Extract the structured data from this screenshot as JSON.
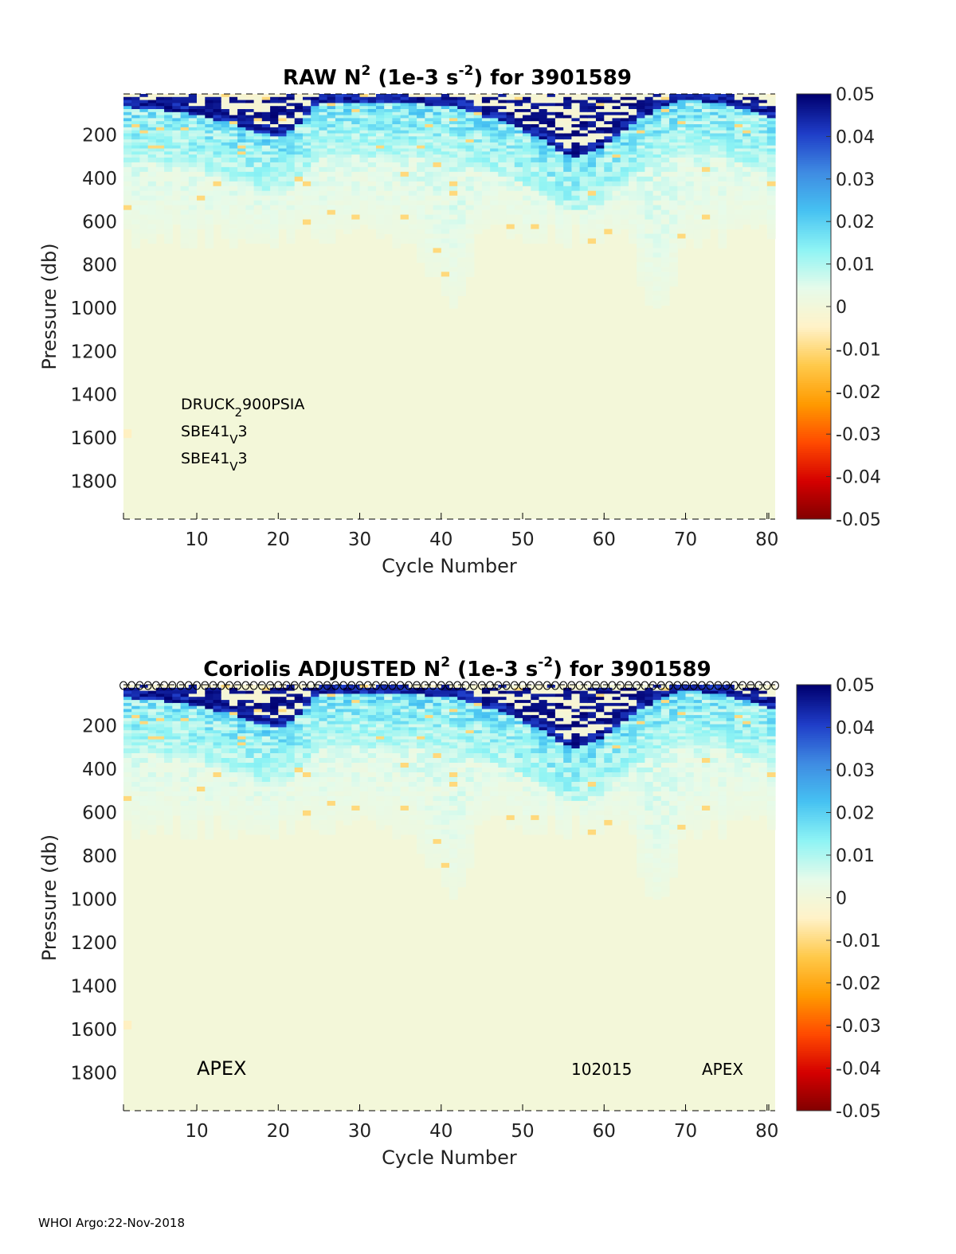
{
  "footer": "WHOI Argo:22-Nov-2018",
  "colormap": {
    "stops": [
      "#800000",
      "#d40000",
      "#ff4a00",
      "#ff9a00",
      "#ffc94a",
      "#fff2c8",
      "#e6fbea",
      "#8ef4f4",
      "#46c2f2",
      "#3f8be2",
      "#1f3dc8",
      "#00006f"
    ]
  },
  "chart_data": [
    {
      "type": "heatmap",
      "title": "RAW N² (1e-3 s⁻²) for 3901589",
      "title_parts": [
        "RAW N",
        "2",
        " (1e-3 s",
        "-2",
        ") for 3901589"
      ],
      "xlabel": "Cycle Number",
      "ylabel": "Pressure (db)",
      "xlim": [
        1,
        81
      ],
      "ylim": [
        1975,
        10
      ],
      "y_reversed": true,
      "xticks": [
        10,
        20,
        30,
        40,
        50,
        60,
        70,
        80
      ],
      "yticks": [
        200,
        400,
        600,
        800,
        1000,
        1200,
        1400,
        1600,
        1800
      ],
      "clim": [
        -0.05,
        0.05
      ],
      "colorbar_ticks": [
        0.05,
        0.04,
        0.03,
        0.02,
        0.01,
        0,
        -0.01,
        -0.02,
        -0.03,
        -0.04,
        -0.05
      ],
      "colorbar_labels": [
        "0.05",
        "0.04",
        "0.03",
        "0.02",
        "0.01",
        "0",
        "-0.01",
        "-0.02",
        "-0.03",
        "-0.04",
        "-0.05"
      ],
      "annotations": [
        {
          "text": "DRUCK",
          "sub": "2",
          "after": "900PSIA"
        },
        {
          "text": "SBE41",
          "sub": "V",
          "after": "3"
        },
        {
          "text": "SBE41",
          "sub": "V",
          "after": "3"
        }
      ],
      "surface_markers": false,
      "value_field": {
        "description_zero_below_db": 1000,
        "high_band": [
          [
            1,
            60
          ],
          [
            10,
            100
          ],
          [
            15,
            150
          ],
          [
            18,
            185
          ],
          [
            20,
            200
          ],
          [
            22,
            170
          ],
          [
            25,
            40
          ],
          [
            30,
            40
          ],
          [
            37,
            50
          ],
          [
            42,
            60
          ],
          [
            45,
            110
          ],
          [
            48,
            130
          ],
          [
            50,
            170
          ],
          [
            53,
            230
          ],
          [
            56,
            300
          ],
          [
            60,
            250
          ],
          [
            64,
            120
          ],
          [
            67,
            70
          ],
          [
            70,
            30
          ],
          [
            75,
            50
          ],
          [
            80,
            110
          ]
        ],
        "deep_cycles": [
          [
            34,
            700
          ],
          [
            38,
            850
          ],
          [
            41,
            1000
          ],
          [
            66,
            1050
          ]
        ]
      }
    },
    {
      "type": "heatmap",
      "title": "Coriolis  ADJUSTED N² (1e-3 s⁻²) for 3901589",
      "title_parts": [
        "Coriolis  ADJUSTED N",
        "2",
        " (1e-3 s",
        "-2",
        ") for 3901589"
      ],
      "xlabel": "Cycle Number",
      "ylabel": "Pressure (db)",
      "xlim": [
        1,
        81
      ],
      "ylim": [
        1975,
        10
      ],
      "y_reversed": true,
      "xticks": [
        10,
        20,
        30,
        40,
        50,
        60,
        70,
        80
      ],
      "yticks": [
        200,
        400,
        600,
        800,
        1000,
        1200,
        1400,
        1600,
        1800
      ],
      "clim": [
        -0.05,
        0.05
      ],
      "colorbar_ticks": [
        0.05,
        0.04,
        0.03,
        0.02,
        0.01,
        0,
        -0.01,
        -0.02,
        -0.03,
        -0.04,
        -0.05
      ],
      "colorbar_labels": [
        "0.05",
        "0.04",
        "0.03",
        "0.02",
        "0.01",
        "0",
        "-0.01",
        "-0.02",
        "-0.03",
        "-0.04",
        "-0.05"
      ],
      "bottom_labels": [
        "APEX",
        "102015",
        "APEX"
      ],
      "surface_markers": true,
      "value_field": {
        "description_zero_below_db": 1000,
        "high_band": [
          [
            1,
            60
          ],
          [
            10,
            100
          ],
          [
            15,
            150
          ],
          [
            18,
            185
          ],
          [
            20,
            200
          ],
          [
            22,
            170
          ],
          [
            25,
            40
          ],
          [
            30,
            40
          ],
          [
            37,
            50
          ],
          [
            42,
            60
          ],
          [
            45,
            110
          ],
          [
            48,
            130
          ],
          [
            50,
            170
          ],
          [
            53,
            230
          ],
          [
            56,
            300
          ],
          [
            60,
            250
          ],
          [
            64,
            120
          ],
          [
            67,
            70
          ],
          [
            70,
            30
          ],
          [
            75,
            50
          ],
          [
            80,
            110
          ]
        ],
        "deep_cycles": [
          [
            34,
            700
          ],
          [
            38,
            850
          ],
          [
            41,
            1000
          ],
          [
            66,
            1050
          ]
        ]
      }
    }
  ]
}
